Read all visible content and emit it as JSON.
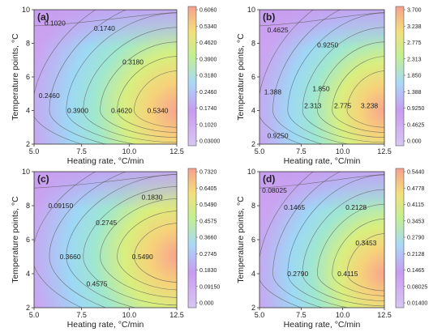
{
  "figure_colors": {
    "low": "#c89bf0",
    "mid": "#9fe3f5",
    "mid2": "#c2f08f",
    "high": "#f5a08e",
    "line": "#555555"
  },
  "chart_data": [
    {
      "panel": "(a)",
      "type": "contour",
      "xlabel": "Heating rate, °C/min",
      "ylabel": "Temperature points, °C",
      "xticks": [
        "5.0",
        "7.5",
        "10.0",
        "12.5"
      ],
      "yticks": [
        "2",
        "4",
        "6",
        "8",
        "10"
      ],
      "xlim": [
        5,
        12.5
      ],
      "ylim": [
        2,
        10
      ],
      "peak": {
        "x": 12.5,
        "y": 4,
        "value": 0.58
      },
      "levels": [
        "0.1020",
        "0.1740",
        "0.3180",
        "0.2460",
        "0.3900",
        "0.4620",
        "0.5340"
      ],
      "colorbar_ticks": [
        "0.6060",
        "0.5340",
        "0.4620",
        "0.3900",
        "0.3180",
        "0.2460",
        "0.1740",
        "0.1020",
        "0.03000"
      ]
    },
    {
      "panel": "(b)",
      "type": "contour",
      "xlabel": "Heating rate, °C/min",
      "ylabel": "Temperature points, °C",
      "xticks": [
        "5.0",
        "7.5",
        "10.0",
        "12.5"
      ],
      "yticks": [
        "2",
        "4",
        "6",
        "8",
        "10"
      ],
      "xlim": [
        5,
        12.5
      ],
      "ylim": [
        2,
        10
      ],
      "peak": {
        "x": 12.5,
        "y": 4,
        "value": 3.55
      },
      "levels": [
        "0.4625",
        "0.9250",
        "1.388",
        "1.850",
        "2.313",
        "2.775",
        "3.238",
        "0.9250"
      ],
      "colorbar_ticks": [
        "3.700",
        "3.238",
        "2.775",
        "2.313",
        "1.850",
        "1.388",
        "0.9250",
        "0.4625",
        "0.000"
      ]
    },
    {
      "panel": "(c)",
      "type": "contour",
      "xlabel": "Heating rate, °C/min",
      "ylabel": "Temperature points, °C",
      "xticks": [
        "5.0",
        "7.5",
        "10.0",
        "12.5"
      ],
      "yticks": [
        "2",
        "4",
        "6",
        "8",
        "10"
      ],
      "xlim": [
        5,
        12.5
      ],
      "ylim": [
        2,
        10
      ],
      "peak": {
        "x": 12.5,
        "y": 5,
        "value": 0.7
      },
      "levels": [
        "0.09150",
        "0.1830",
        "0.2745",
        "0.3660",
        "0.5490",
        "0.4575"
      ],
      "colorbar_ticks": [
        "0.7320",
        "0.6405",
        "0.5490",
        "0.4575",
        "0.3660",
        "0.2745",
        "0.1830",
        "0.09150",
        "0.000"
      ]
    },
    {
      "panel": "(d)",
      "type": "contour",
      "xlabel": "Heating rate, °C/min",
      "ylabel": "Temperature points, °C",
      "xticks": [
        "5.0",
        "7.5",
        "10.0",
        "12.5"
      ],
      "yticks": [
        "2",
        "4",
        "6",
        "8",
        "10"
      ],
      "xlim": [
        5,
        12.5
      ],
      "ylim": [
        2,
        10
      ],
      "peak": {
        "x": 12.5,
        "y": 4,
        "value": 0.52
      },
      "levels": [
        "0.08025",
        "0.1465",
        "0.2128",
        "0.3453",
        "0.2790",
        "0.4115"
      ],
      "colorbar_ticks": [
        "0.5440",
        "0.4778",
        "0.4115",
        "0.3453",
        "0.2790",
        "0.2128",
        "0.1465",
        "0.08025",
        "0.01400"
      ]
    }
  ]
}
